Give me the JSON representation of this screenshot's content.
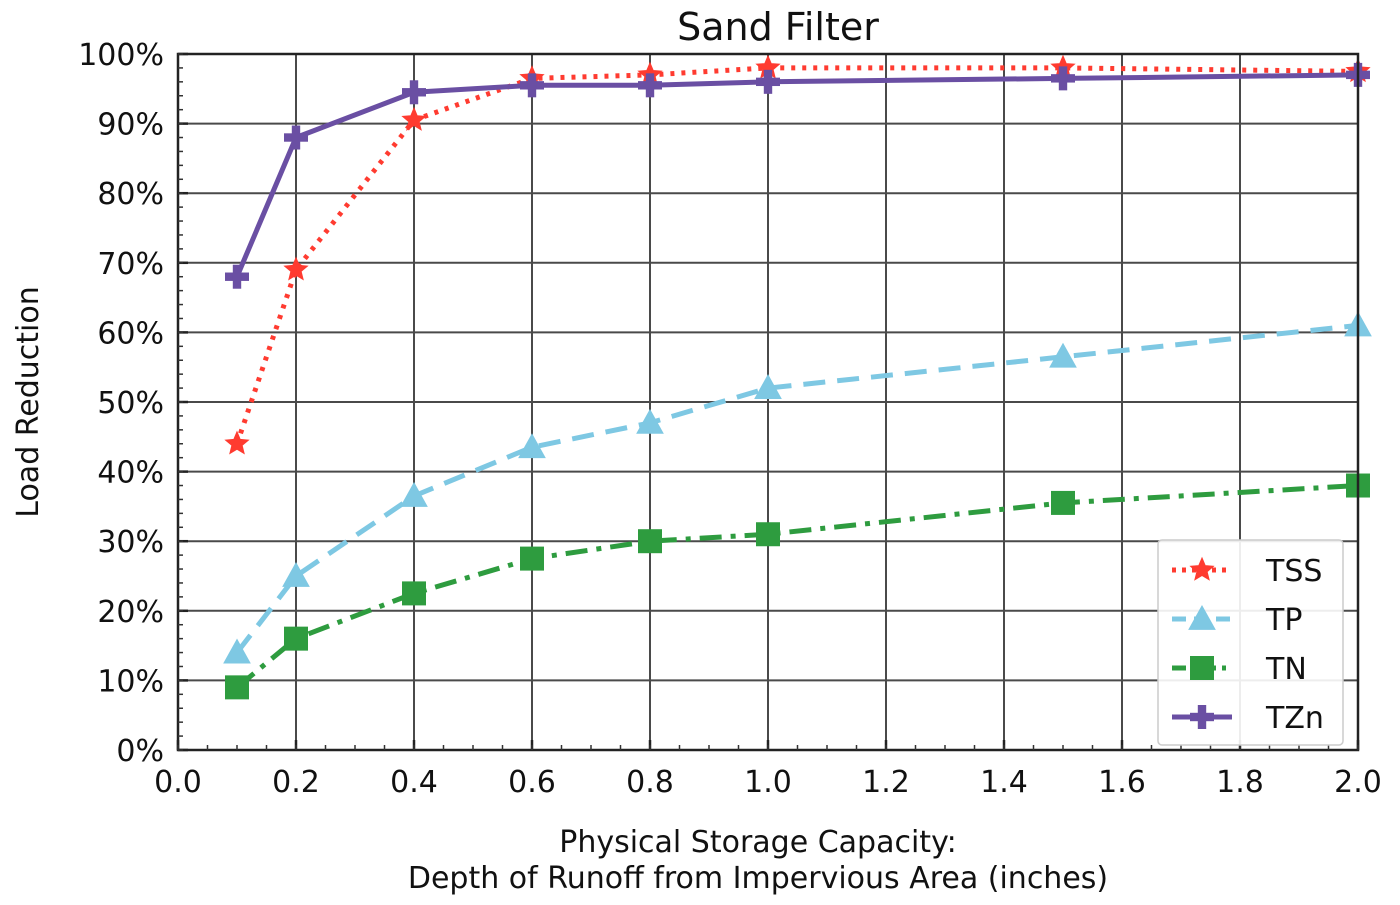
{
  "chart_data": {
    "type": "line",
    "title": "Sand Filter",
    "xlabel_lines": [
      "Physical Storage Capacity:",
      "Depth of Runoff  from Impervious Area (inches)"
    ],
    "ylabel": "Load Reduction",
    "xlim": [
      0.0,
      2.0
    ],
    "ylim": [
      0,
      100
    ],
    "x_ticks": [
      "0.0",
      "0.2",
      "0.4",
      "0.6",
      "0.8",
      "1.0",
      "1.2",
      "1.4",
      "1.6",
      "1.8",
      "2.0"
    ],
    "y_ticks": [
      "0%",
      "10%",
      "20%",
      "30%",
      "40%",
      "50%",
      "60%",
      "70%",
      "80%",
      "90%",
      "100%"
    ],
    "grid": true,
    "legend_position": "bottom-right",
    "series": [
      {
        "name": "TSS",
        "color": "#ff3b30",
        "line_style": "dotted",
        "marker": "star",
        "x": [
          0.1,
          0.2,
          0.4,
          0.6,
          0.8,
          1.0,
          1.5,
          2.0
        ],
        "y": [
          44,
          69,
          90.5,
          96.5,
          97,
          98,
          98,
          97.5
        ]
      },
      {
        "name": "TP",
        "color": "#7ec8e3",
        "line_style": "dashed",
        "marker": "triangle",
        "x": [
          0.1,
          0.2,
          0.4,
          0.6,
          0.8,
          1.0,
          1.5,
          2.0
        ],
        "y": [
          14,
          25,
          36.5,
          43.5,
          47,
          52,
          56.5,
          61
        ]
      },
      {
        "name": "TN",
        "color": "#2e9c3f",
        "line_style": "dashdot",
        "marker": "square",
        "x": [
          0.1,
          0.2,
          0.4,
          0.6,
          0.8,
          1.0,
          1.5,
          2.0
        ],
        "y": [
          9,
          16,
          22.5,
          27.5,
          30,
          31,
          35.5,
          38
        ]
      },
      {
        "name": "TZn",
        "color": "#6a4fa3",
        "line_style": "solid",
        "marker": "plus",
        "x": [
          0.1,
          0.2,
          0.4,
          0.6,
          0.8,
          1.0,
          1.5,
          2.0
        ],
        "y": [
          68,
          88,
          94.5,
          95.5,
          95.5,
          96,
          96.5,
          97
        ]
      }
    ]
  }
}
